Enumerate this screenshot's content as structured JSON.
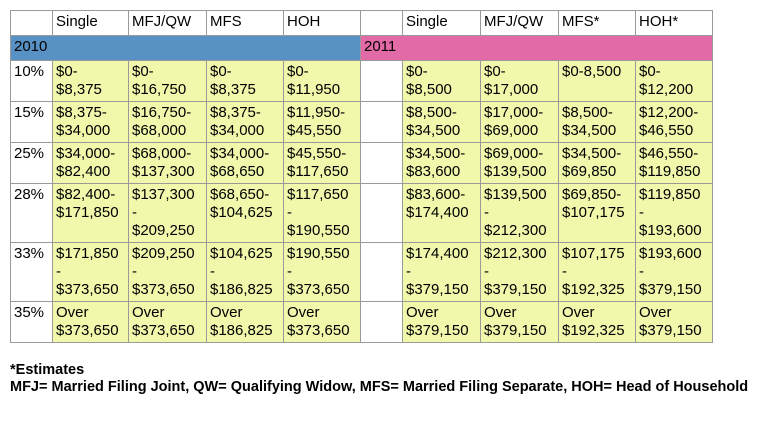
{
  "table": {
    "header": {
      "left": [
        "Single",
        "MFJ/QW",
        "MFS",
        "HOH"
      ],
      "right": [
        "Single",
        "MFJ/QW",
        "MFS*",
        "HOH*"
      ]
    },
    "years": [
      "2010",
      "2011"
    ],
    "rows": [
      {
        "rate": "10%",
        "cells_2010": [
          "$0-\n$8,375",
          "$0-\n$16,750",
          "$0-\n$8,375",
          "$0-\n$11,950"
        ],
        "cells_2011": [
          "$0-\n$8,500",
          "$0-\n$17,000",
          "$0-8,500",
          "$0-\n$12,200"
        ]
      },
      {
        "rate": "15%",
        "cells_2010": [
          "$8,375-\n$34,000",
          "$16,750-\n$68,000",
          "$8,375-\n$34,000",
          "$11,950-\n$45,550"
        ],
        "cells_2011": [
          "$8,500-\n$34,500",
          "$17,000-\n$69,000",
          "$8,500-\n$34,500",
          "$12,200-\n$46,550"
        ]
      },
      {
        "rate": "25%",
        "cells_2010": [
          "$34,000-\n$82,400",
          "$68,000-\n$137,300",
          "$34,000-\n$68,650",
          "$45,550-\n$117,650"
        ],
        "cells_2011": [
          "$34,500-\n$83,600",
          "$69,000-\n$139,500",
          "$34,500-\n$69,850",
          "$46,550-\n$119,850"
        ]
      },
      {
        "rate": "28%",
        "cells_2010": [
          "$82,400-\n$171,850",
          "$137,300\n-\n$209,250",
          "$68,650-\n$104,625",
          "$117,650\n-\n$190,550"
        ],
        "cells_2011": [
          "$83,600-\n$174,400",
          "$139,500\n-\n$212,300",
          "$69,850-\n$107,175",
          "$119,850\n-\n$193,600"
        ]
      },
      {
        "rate": "33%",
        "cells_2010": [
          "$171,850\n-\n$373,650",
          "$209,250\n-\n$373,650",
          "$104,625\n-\n$186,825",
          "$190,550\n-\n$373,650"
        ],
        "cells_2011": [
          "$174,400\n-\n$379,150",
          "$212,300\n-\n$379,150",
          "$107,175\n-\n$192,325",
          "$193,600\n-\n$379,150"
        ]
      },
      {
        "rate": "35%",
        "cells_2010": [
          "Over\n$373,650",
          "Over\n$373,650",
          "Over\n$186,825",
          "Over\n$373,650"
        ],
        "cells_2011": [
          "Over\n$379,150",
          "Over\n$379,150",
          "Over\n$192,325",
          "Over\n$379,150"
        ]
      }
    ]
  },
  "notes": [
    "*Estimates",
    "MFJ= Married Filing Joint, QW= Qualifying Widow, MFS= Married Filing Separate, HOH= Head of Household"
  ]
}
